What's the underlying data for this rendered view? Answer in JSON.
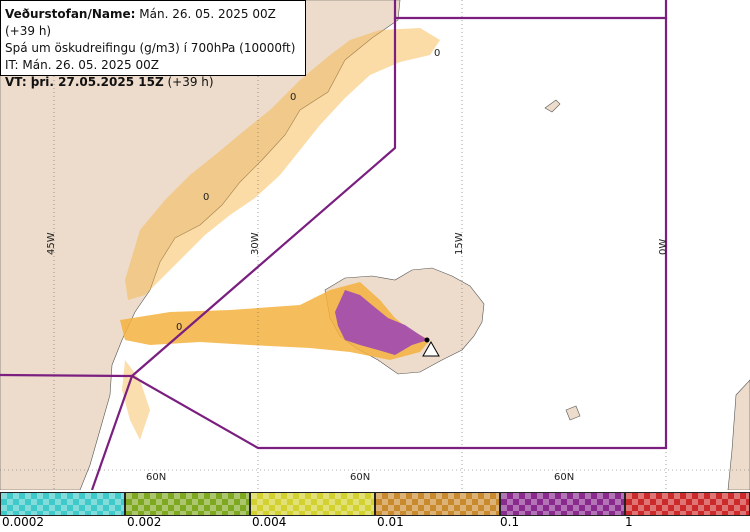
{
  "info": {
    "line1_label": "Veðurstofan/Name:",
    "line1_value": "Mán. 26. 05. 2025 00Z (+39 h)",
    "line2": "Spá um öskudreifingu (g/m3) í 700hPa (10000ft)",
    "line3": "IT: Mán. 26. 05. 2025 00Z",
    "line4_label": "VT: þri. 27.05.2025 15Z",
    "line4_value": "(+39 h)"
  },
  "grid": {
    "lon_labels": [
      "45W",
      "30W",
      "15W",
      "0W"
    ],
    "lat_labels": [
      "60N",
      "60N",
      "60N"
    ]
  },
  "contour_labels": [
    "0",
    "0",
    "0",
    "0"
  ],
  "legend": {
    "colors": [
      "#3fc9c9",
      "#7ea81f",
      "#d2d12f",
      "#c9892d",
      "#8a2a8e",
      "#cc2a2a"
    ],
    "ticks": [
      "0.0002",
      "0.002",
      "0.004",
      "0.01",
      "0.1",
      "1"
    ]
  },
  "colors": {
    "land": "#eddccb",
    "sea": "#ffffff",
    "airspace_boundary": "#7a1f7f",
    "ash_low": "#f5b240",
    "ash_high": "#a049b2"
  }
}
